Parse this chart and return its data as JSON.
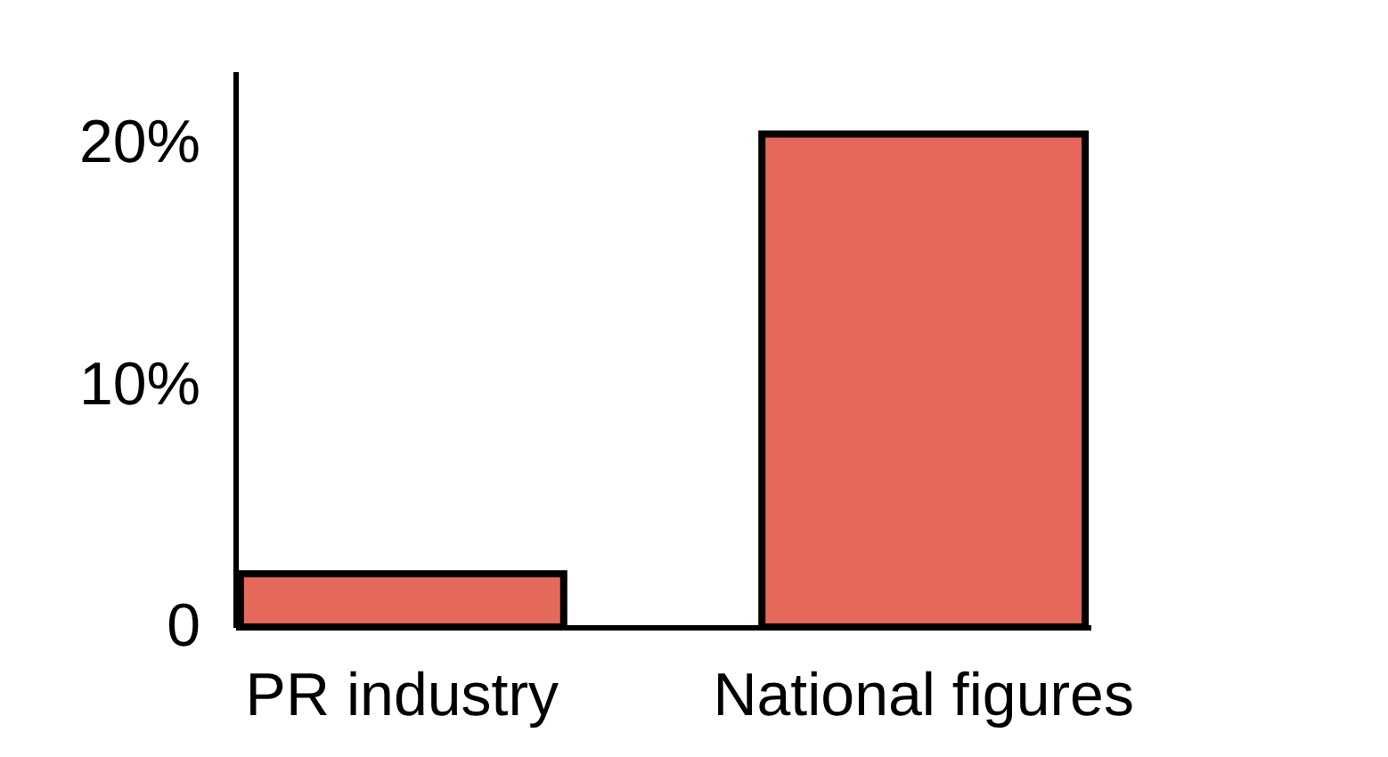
{
  "chart_data": {
    "type": "bar",
    "categories": [
      "PR industry",
      "National figures"
    ],
    "values": [
      2.2,
      20.4
    ],
    "color": "#e5695a",
    "ylim": [
      0,
      23
    ],
    "yticks": [
      {
        "value": 0,
        "label": "0"
      },
      {
        "value": 10,
        "label": "10%"
      },
      {
        "value": 20,
        "label": "20%"
      }
    ],
    "grid": false
  }
}
